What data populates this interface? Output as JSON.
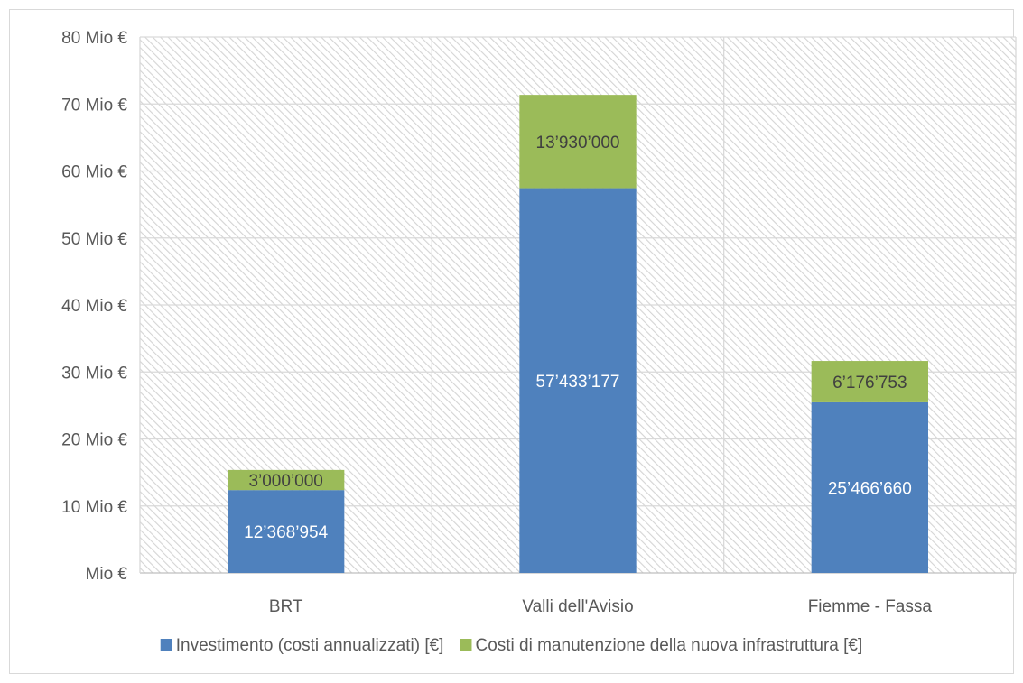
{
  "chart_data": {
    "type": "bar",
    "stacked": true,
    "title": "",
    "xlabel": "",
    "ylabel": "",
    "categories": [
      "BRT",
      "Valli dell'Avisio",
      "Fiemme - Fassa"
    ],
    "series": [
      {
        "name": "Investimento (costi annualizzati) [€]",
        "color": "#4f81bd",
        "label_color": "#ffffff",
        "values": [
          12368954,
          57433177,
          25466660
        ],
        "labels": [
          "12’368’954",
          "57’433’177",
          "25’466’660"
        ]
      },
      {
        "name": "Costi di manutenzione della nuova infrastruttura [€]",
        "color": "#9bbb59",
        "label_color": "#404040",
        "values": [
          3000000,
          13930000,
          6176753
        ],
        "labels": [
          "3’000’000",
          "13’930’000",
          "6’176’753"
        ]
      }
    ],
    "ylim": [
      0,
      80000000
    ],
    "yticks": [
      0,
      10000000,
      20000000,
      30000000,
      40000000,
      50000000,
      60000000,
      70000000,
      80000000
    ],
    "ytick_labels": [
      "Mio €",
      "10 Mio €",
      "20 Mio €",
      "30 Mio €",
      "40 Mio €",
      "50 Mio €",
      "60 Mio €",
      "70 Mio €",
      "80 Mio €"
    ],
    "grid": true,
    "plot_background": "diagonal-hatch",
    "legend": "bottom"
  }
}
